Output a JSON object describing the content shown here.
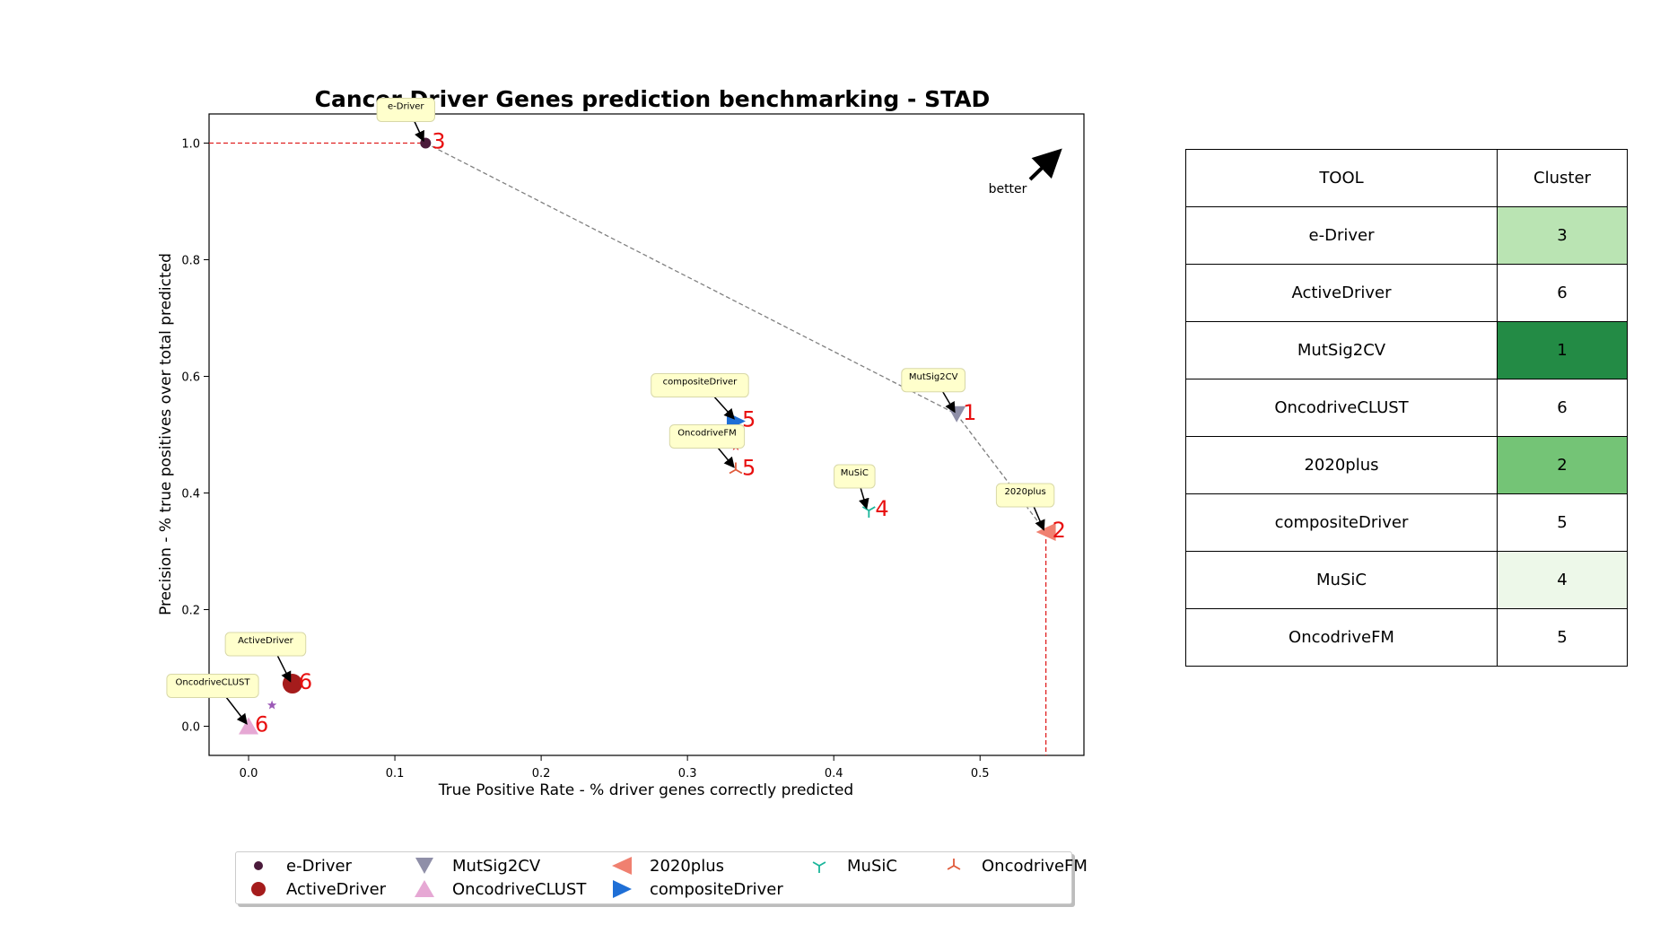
{
  "chart_data": {
    "type": "scatter",
    "title": "Cancer Driver Genes prediction benchmarking - STAD",
    "xlabel": "True Positive Rate - % driver genes correctly predicted",
    "ylabel": "Precision - % true positives over total predicted",
    "xlim": [
      -0.027,
      0.571
    ],
    "ylim": [
      -0.05,
      1.05
    ],
    "xticks": [
      "0.0",
      "0.1",
      "0.2",
      "0.3",
      "0.4",
      "0.5"
    ],
    "yticks": [
      "0.0",
      "0.2",
      "0.4",
      "0.6",
      "0.8",
      "1.0"
    ],
    "better_label": "better",
    "points": [
      {
        "name": "e-Driver",
        "x": 0.121,
        "y": 1.0,
        "cluster": "3",
        "marker": "circle",
        "color": "#4a1a3a"
      },
      {
        "name": "ActiveDriver",
        "x": 0.03,
        "y": 0.073,
        "cluster": "6",
        "marker": "bigcircle",
        "color": "#a51c1c"
      },
      {
        "name": "MutSig2CV",
        "x": 0.484,
        "y": 0.535,
        "cluster": "1",
        "marker": "triangle-down",
        "color": "#8f8fa8"
      },
      {
        "name": "OncodriveCLUST",
        "x": 0.0,
        "y": 0.0,
        "cluster": "6",
        "marker": "triangle-up",
        "color": "#e6a8d4"
      },
      {
        "name": "2020plus",
        "x": 0.545,
        "y": 0.333,
        "cluster": "2",
        "marker": "triangle-left",
        "color": "#f08070"
      },
      {
        "name": "compositeDriver",
        "x": 0.333,
        "y": 0.523,
        "cluster": "5",
        "marker": "triangle-right",
        "color": "#1f6fd6"
      },
      {
        "name": "MuSiC",
        "x": 0.424,
        "y": 0.37,
        "cluster": "4",
        "marker": "tri-down",
        "color": "#1ab59a"
      },
      {
        "name": "OncodriveFM",
        "x": 0.333,
        "y": 0.44,
        "cluster": "5",
        "marker": "tri-up",
        "color": "#e05a3a"
      }
    ],
    "extra_stars": [
      {
        "x": 0.016,
        "y": 0.036,
        "color": "#9b59b6"
      },
      {
        "x": 0.333,
        "y": 0.48,
        "color": "#d9342b"
      }
    ],
    "frontier": [
      [
        0.121,
        1.0
      ],
      [
        0.484,
        0.535
      ],
      [
        0.545,
        0.333
      ]
    ],
    "ref_lines": {
      "y_at_top": 1.0,
      "x_at_right": 0.545
    }
  },
  "table": {
    "headers": [
      "TOOL",
      "Cluster"
    ],
    "rows": [
      {
        "tool": "e-Driver",
        "cluster": "3",
        "color": "#bae4b3"
      },
      {
        "tool": "ActiveDriver",
        "cluster": "6",
        "color": "#ffffff"
      },
      {
        "tool": "MutSig2CV",
        "cluster": "1",
        "color": "#238b45"
      },
      {
        "tool": "OncodriveCLUST",
        "cluster": "6",
        "color": "#ffffff"
      },
      {
        "tool": "2020plus",
        "cluster": "2",
        "color": "#74c476"
      },
      {
        "tool": "compositeDriver",
        "cluster": "5",
        "color": "#ffffff"
      },
      {
        "tool": "MuSiC",
        "cluster": "4",
        "color": "#edf8e9"
      },
      {
        "tool": "OncodriveFM",
        "cluster": "5",
        "color": "#ffffff"
      }
    ]
  },
  "legend": [
    "e-Driver",
    "ActiveDriver",
    "MutSig2CV",
    "OncodriveCLUST",
    "2020plus",
    "compositeDriver",
    "MuSiC",
    "OncodriveFM"
  ]
}
